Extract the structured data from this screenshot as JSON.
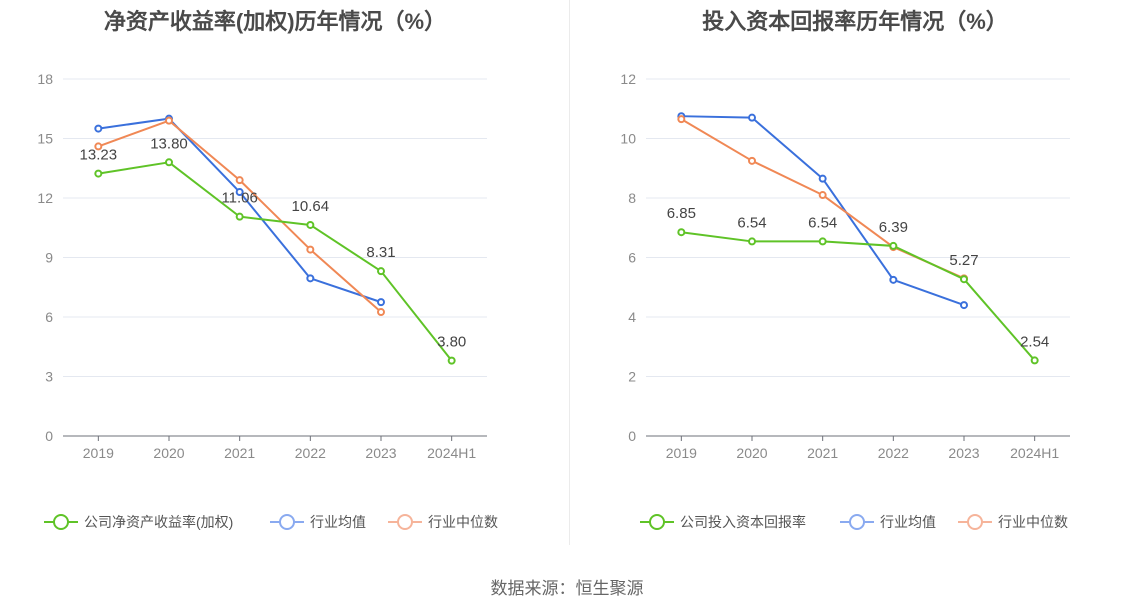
{
  "source": "数据来源：恒生聚源",
  "colors": {
    "company": "#5fc327",
    "industry_avg": "#3a70dc",
    "industry_median": "#f08855",
    "legend_avg": "#8aaaf0",
    "legend_median": "#f6b49a"
  },
  "chart_data": [
    {
      "type": "line",
      "title": "净资产收益率(加权)历年情况（%）",
      "categories": [
        "2019",
        "2020",
        "2021",
        "2022",
        "2023",
        "2024H1"
      ],
      "ylim": [
        0,
        18
      ],
      "yticks": [
        "0",
        "3",
        "6",
        "9",
        "12",
        "15",
        "18"
      ],
      "ytick_values": [
        0,
        3,
        6,
        9,
        12,
        15,
        18
      ],
      "series": [
        {
          "name": "公司净资产收益率(加权)",
          "key": "company",
          "values": [
            13.23,
            13.8,
            11.06,
            10.64,
            8.31,
            3.8
          ],
          "labels": [
            "13.23",
            "13.80",
            "11.06",
            "10.64",
            "8.31",
            "3.80"
          ]
        },
        {
          "name": "行业均值",
          "key": "industry_avg",
          "values": [
            15.5,
            16.0,
            12.3,
            7.95,
            6.75,
            null
          ]
        },
        {
          "name": "行业中位数",
          "key": "industry_median",
          "values": [
            14.6,
            15.9,
            12.9,
            9.4,
            6.25,
            null
          ]
        }
      ]
    },
    {
      "type": "line",
      "title": "投入资本回报率历年情况（%）",
      "categories": [
        "2019",
        "2020",
        "2021",
        "2022",
        "2023",
        "2024H1"
      ],
      "ylim": [
        0,
        12
      ],
      "yticks": [
        "0",
        "2",
        "4",
        "6",
        "8",
        "10",
        "12"
      ],
      "ytick_values": [
        0,
        2,
        4,
        6,
        8,
        10,
        12
      ],
      "series": [
        {
          "name": "公司投入资本回报率",
          "key": "company",
          "values": [
            6.85,
            6.54,
            6.54,
            6.39,
            5.27,
            2.54
          ],
          "labels": [
            "6.85",
            "6.54",
            "6.54",
            "6.39",
            "5.27",
            "2.54"
          ]
        },
        {
          "name": "行业均值",
          "key": "industry_avg",
          "values": [
            10.75,
            10.7,
            8.65,
            5.25,
            4.4,
            null
          ]
        },
        {
          "name": "行业中位数",
          "key": "industry_median",
          "values": [
            10.65,
            9.25,
            8.1,
            6.35,
            5.3,
            null
          ]
        }
      ]
    }
  ]
}
